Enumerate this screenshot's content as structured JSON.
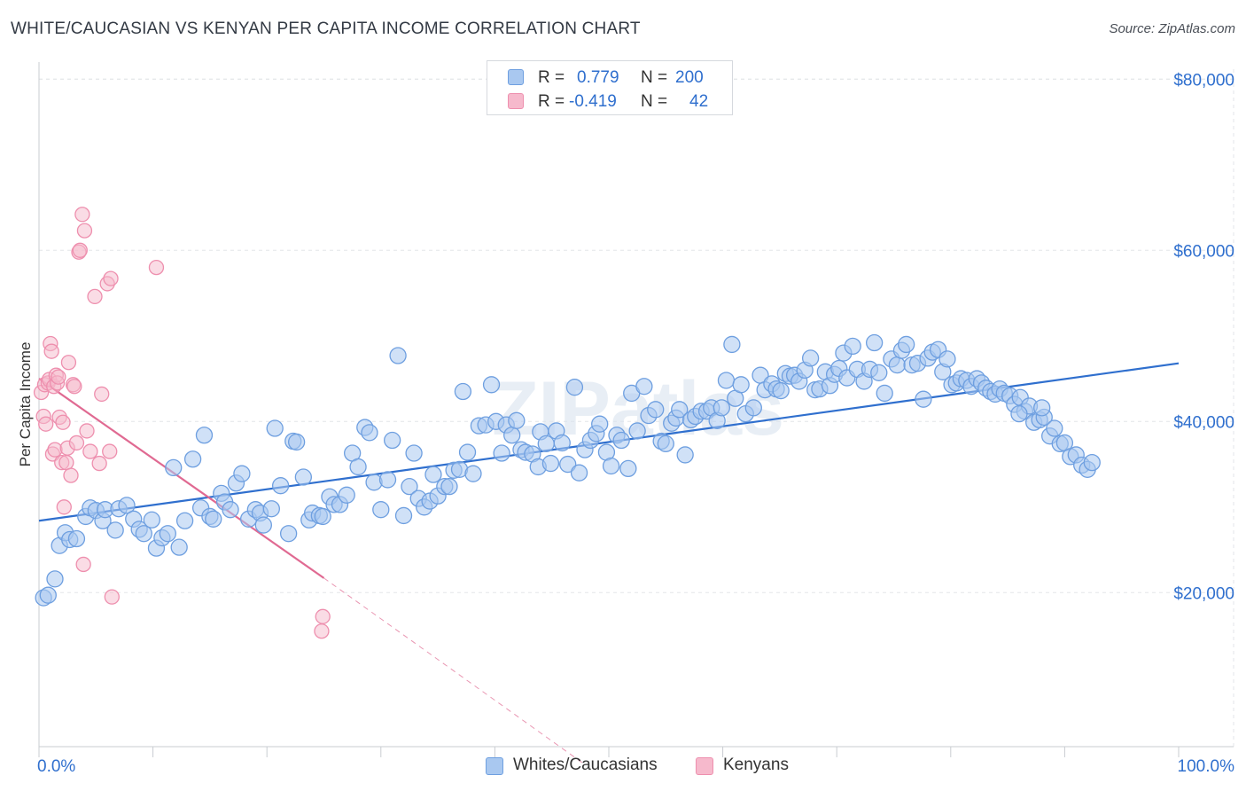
{
  "title": "WHITE/CAUCASIAN VS KENYAN PER CAPITA INCOME CORRELATION CHART",
  "source": "Source: ZipAtlas.com",
  "colors": {
    "blue_fill": "#a9c8f0",
    "blue_stroke": "#6e9fe0",
    "blue_line": "#2f6fce",
    "pink_fill": "#f6b9cc",
    "pink_stroke": "#ee8fae",
    "pink_line": "#e06a92",
    "axis_label": "#2f6fce",
    "grid": "#e3e5e8"
  },
  "legend_top": [
    {
      "r_label": "R =",
      "r_value": "0.779",
      "n_label": "N =",
      "n_value": "200"
    },
    {
      "r_label": "R =",
      "r_value": "-0.419",
      "n_label": "N =",
      "n_value": "42"
    }
  ],
  "legend_bottom": [
    "Whites/Caucasians",
    "Kenyans"
  ],
  "watermark": "ZIPatlas",
  "chart_data": {
    "type": "scatter",
    "title": "WHITE/CAUCASIAN VS KENYAN PER CAPITA INCOME CORRELATION CHART",
    "xlabel": "",
    "ylabel": "Per Capita Income",
    "x_tick_labels": [
      "0.0%",
      "100.0%"
    ],
    "y_tick_labels": [
      "$20,000",
      "$40,000",
      "$60,000",
      "$80,000"
    ],
    "y_ticks": [
      20000,
      40000,
      60000,
      80000
    ],
    "xlim": [
      0,
      100
    ],
    "ylim": [
      2000,
      82000
    ],
    "grid": true,
    "legend_position": "bottom-center",
    "series": [
      {
        "name": "Whites/Caucasians",
        "r": 0.779,
        "n": 200,
        "trend": {
          "x": [
            0,
            100
          ],
          "y": [
            28400,
            46800
          ]
        },
        "points": [
          [
            0.4,
            19400
          ],
          [
            0.8,
            19700
          ],
          [
            1.4,
            21600
          ],
          [
            1.8,
            25500
          ],
          [
            2.3,
            27000
          ],
          [
            2.7,
            26200
          ],
          [
            3.3,
            26300
          ],
          [
            4.1,
            28900
          ],
          [
            4.5,
            29900
          ],
          [
            5.0,
            29600
          ],
          [
            5.6,
            28400
          ],
          [
            5.8,
            29700
          ],
          [
            6.7,
            27300
          ],
          [
            7.0,
            29800
          ],
          [
            7.7,
            30200
          ],
          [
            8.3,
            28600
          ],
          [
            8.8,
            27400
          ],
          [
            9.2,
            26900
          ],
          [
            9.9,
            28500
          ],
          [
            10.3,
            25200
          ],
          [
            10.8,
            26400
          ],
          [
            11.3,
            26900
          ],
          [
            11.8,
            34600
          ],
          [
            12.3,
            25300
          ],
          [
            12.8,
            28400
          ],
          [
            13.5,
            35600
          ],
          [
            14.2,
            29900
          ],
          [
            14.5,
            38400
          ],
          [
            15.0,
            28900
          ],
          [
            15.3,
            28600
          ],
          [
            16.0,
            31600
          ],
          [
            16.3,
            30600
          ],
          [
            16.8,
            29700
          ],
          [
            17.3,
            32800
          ],
          [
            17.8,
            33900
          ],
          [
            18.4,
            28600
          ],
          [
            19.0,
            29700
          ],
          [
            19.4,
            29300
          ],
          [
            19.7,
            27900
          ],
          [
            20.4,
            29800
          ],
          [
            20.7,
            39200
          ],
          [
            21.2,
            32500
          ],
          [
            21.9,
            26900
          ],
          [
            22.3,
            37700
          ],
          [
            22.6,
            37600
          ],
          [
            23.2,
            33500
          ],
          [
            23.7,
            28500
          ],
          [
            24.0,
            29300
          ],
          [
            24.6,
            29000
          ],
          [
            24.9,
            28900
          ],
          [
            25.5,
            31200
          ],
          [
            25.9,
            30300
          ],
          [
            26.4,
            30300
          ],
          [
            27.0,
            31400
          ],
          [
            27.5,
            36300
          ],
          [
            28.0,
            34700
          ],
          [
            28.6,
            39300
          ],
          [
            29.0,
            38700
          ],
          [
            29.4,
            32900
          ],
          [
            30.0,
            29700
          ],
          [
            30.6,
            33200
          ],
          [
            31.0,
            37800
          ],
          [
            31.5,
            47700
          ],
          [
            32.0,
            29000
          ],
          [
            32.5,
            32400
          ],
          [
            32.9,
            36300
          ],
          [
            33.3,
            31000
          ],
          [
            33.8,
            30000
          ],
          [
            34.3,
            30700
          ],
          [
            34.6,
            33800
          ],
          [
            35.0,
            31300
          ],
          [
            35.6,
            32400
          ],
          [
            36.0,
            32400
          ],
          [
            36.4,
            34300
          ],
          [
            36.9,
            34400
          ],
          [
            37.2,
            43500
          ],
          [
            37.6,
            36400
          ],
          [
            38.1,
            33900
          ],
          [
            38.6,
            39500
          ],
          [
            39.2,
            39600
          ],
          [
            39.7,
            44300
          ],
          [
            40.1,
            40000
          ],
          [
            40.6,
            36300
          ],
          [
            41.0,
            39600
          ],
          [
            41.5,
            38400
          ],
          [
            41.9,
            40100
          ],
          [
            42.3,
            36700
          ],
          [
            42.7,
            36400
          ],
          [
            43.3,
            36200
          ],
          [
            43.8,
            34700
          ],
          [
            44.0,
            38800
          ],
          [
            44.5,
            37400
          ],
          [
            44.9,
            35100
          ],
          [
            45.4,
            38900
          ],
          [
            45.9,
            37500
          ],
          [
            46.4,
            35000
          ],
          [
            47.0,
            44000
          ],
          [
            47.4,
            34000
          ],
          [
            47.9,
            36700
          ],
          [
            48.4,
            37800
          ],
          [
            48.9,
            38600
          ],
          [
            49.2,
            39700
          ],
          [
            49.8,
            36400
          ],
          [
            50.2,
            34800
          ],
          [
            50.7,
            38400
          ],
          [
            51.1,
            37800
          ],
          [
            51.7,
            34500
          ],
          [
            52.0,
            43300
          ],
          [
            52.5,
            38900
          ],
          [
            53.1,
            44100
          ],
          [
            53.5,
            40700
          ],
          [
            54.1,
            41400
          ],
          [
            54.6,
            37700
          ],
          [
            55.0,
            37400
          ],
          [
            55.5,
            39800
          ],
          [
            55.9,
            40400
          ],
          [
            56.2,
            41400
          ],
          [
            56.7,
            36100
          ],
          [
            57.2,
            40200
          ],
          [
            57.6,
            40600
          ],
          [
            58.1,
            41200
          ],
          [
            58.6,
            41200
          ],
          [
            59.0,
            41600
          ],
          [
            59.5,
            40100
          ],
          [
            59.9,
            41600
          ],
          [
            60.3,
            44800
          ],
          [
            60.8,
            49000
          ],
          [
            61.1,
            42700
          ],
          [
            61.6,
            44300
          ],
          [
            62.0,
            40900
          ],
          [
            62.7,
            41600
          ],
          [
            63.3,
            45400
          ],
          [
            63.7,
            43700
          ],
          [
            64.3,
            44400
          ],
          [
            64.7,
            43800
          ],
          [
            65.1,
            43600
          ],
          [
            65.5,
            45600
          ],
          [
            65.9,
            45300
          ],
          [
            66.3,
            45400
          ],
          [
            66.7,
            44700
          ],
          [
            67.2,
            46000
          ],
          [
            67.7,
            47400
          ],
          [
            68.1,
            43700
          ],
          [
            68.5,
            43800
          ],
          [
            69.0,
            45800
          ],
          [
            69.4,
            44200
          ],
          [
            69.8,
            45500
          ],
          [
            70.2,
            46200
          ],
          [
            70.6,
            48000
          ],
          [
            70.9,
            45100
          ],
          [
            71.4,
            48800
          ],
          [
            71.8,
            46100
          ],
          [
            72.4,
            44700
          ],
          [
            72.9,
            46100
          ],
          [
            73.3,
            49200
          ],
          [
            73.7,
            45700
          ],
          [
            74.2,
            43300
          ],
          [
            74.8,
            47300
          ],
          [
            75.3,
            46600
          ],
          [
            75.7,
            48300
          ],
          [
            76.1,
            49000
          ],
          [
            76.6,
            46600
          ],
          [
            77.1,
            46800
          ],
          [
            77.6,
            42600
          ],
          [
            78.0,
            47400
          ],
          [
            78.4,
            48100
          ],
          [
            78.9,
            48400
          ],
          [
            79.3,
            45800
          ],
          [
            79.7,
            47300
          ],
          [
            80.1,
            44300
          ],
          [
            80.5,
            44500
          ],
          [
            80.9,
            45000
          ],
          [
            81.4,
            44800
          ],
          [
            81.8,
            44100
          ],
          [
            82.3,
            45000
          ],
          [
            82.7,
            44500
          ],
          [
            83.1,
            43900
          ],
          [
            83.5,
            43500
          ],
          [
            83.9,
            43200
          ],
          [
            84.3,
            43800
          ],
          [
            84.7,
            43300
          ],
          [
            85.2,
            43000
          ],
          [
            85.6,
            42000
          ],
          [
            86.1,
            42800
          ],
          [
            86.5,
            41200
          ],
          [
            86.9,
            41800
          ],
          [
            87.3,
            39900
          ],
          [
            87.8,
            40200
          ],
          [
            88.2,
            40500
          ],
          [
            88.7,
            38300
          ],
          [
            89.1,
            39200
          ],
          [
            89.6,
            37400
          ],
          [
            90.0,
            37500
          ],
          [
            90.5,
            35900
          ],
          [
            91.0,
            36100
          ],
          [
            91.5,
            34900
          ],
          [
            92.0,
            34400
          ],
          [
            92.4,
            35200
          ],
          [
            88.0,
            41600
          ],
          [
            86.0,
            40900
          ]
        ]
      },
      {
        "name": "Kenyans",
        "r": -0.419,
        "n": 42,
        "trend": {
          "x": [
            0,
            25
          ],
          "y": [
            45000,
            21700
          ]
        },
        "trend_dashed_extension": {
          "x": [
            25,
            47.8
          ],
          "y": [
            21700,
            0
          ]
        },
        "points": [
          [
            0.2,
            43400
          ],
          [
            0.4,
            40600
          ],
          [
            0.5,
            44300
          ],
          [
            0.6,
            39700
          ],
          [
            0.8,
            44500
          ],
          [
            0.9,
            44900
          ],
          [
            1.0,
            49100
          ],
          [
            1.1,
            48200
          ],
          [
            1.2,
            36200
          ],
          [
            1.3,
            44100
          ],
          [
            1.4,
            36700
          ],
          [
            1.5,
            45400
          ],
          [
            1.6,
            44500
          ],
          [
            1.8,
            40500
          ],
          [
            2.0,
            35200
          ],
          [
            2.2,
            30000
          ],
          [
            2.4,
            35200
          ],
          [
            2.5,
            36900
          ],
          [
            2.6,
            46900
          ],
          [
            2.8,
            33700
          ],
          [
            3.0,
            44300
          ],
          [
            3.1,
            44100
          ],
          [
            3.3,
            37500
          ],
          [
            3.5,
            59800
          ],
          [
            3.6,
            60000
          ],
          [
            3.8,
            64200
          ],
          [
            3.9,
            23300
          ],
          [
            4.0,
            62300
          ],
          [
            4.2,
            38900
          ],
          [
            4.5,
            36500
          ],
          [
            4.9,
            54600
          ],
          [
            5.3,
            35100
          ],
          [
            5.5,
            43200
          ],
          [
            6.0,
            56100
          ],
          [
            6.2,
            36500
          ],
          [
            6.4,
            19500
          ],
          [
            6.3,
            56700
          ],
          [
            10.3,
            58000
          ],
          [
            24.8,
            15500
          ],
          [
            24.9,
            17200
          ],
          [
            2.1,
            39900
          ],
          [
            1.7,
            45200
          ]
        ]
      }
    ]
  }
}
